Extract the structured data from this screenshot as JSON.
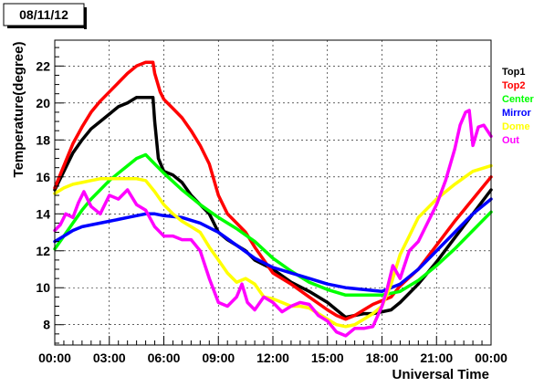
{
  "title_box": "08/11/12",
  "chart_data": {
    "type": "line",
    "title": "08/11/12",
    "xlabel": "Universal Time",
    "ylabel": "Temperature(degree)",
    "xlim": [
      0,
      24
    ],
    "ylim": [
      6.9,
      23.4
    ],
    "x_ticks": [
      {
        "v": 0,
        "label": "00:00"
      },
      {
        "v": 3,
        "label": "03:00"
      },
      {
        "v": 6,
        "label": "06:00"
      },
      {
        "v": 9,
        "label": "09:00"
      },
      {
        "v": 12,
        "label": "12:00"
      },
      {
        "v": 15,
        "label": "15:00"
      },
      {
        "v": 18,
        "label": "18:00"
      },
      {
        "v": 21,
        "label": "21:00"
      },
      {
        "v": 24,
        "label": "00:00"
      }
    ],
    "y_ticks": [
      {
        "v": 8,
        "label": "8"
      },
      {
        "v": 10,
        "label": "10"
      },
      {
        "v": 12,
        "label": "12"
      },
      {
        "v": 14,
        "label": "14"
      },
      {
        "v": 16,
        "label": "16"
      },
      {
        "v": 18,
        "label": "18"
      },
      {
        "v": 20,
        "label": "20"
      },
      {
        "v": 22,
        "label": "22"
      }
    ],
    "grid": true,
    "legend_position": "right",
    "series": [
      {
        "name": "Top1",
        "color": "#000000",
        "x": [
          0,
          0.5,
          1,
          1.5,
          2,
          2.5,
          3,
          3.5,
          4,
          4.5,
          5,
          5.4,
          5.5,
          5.7,
          6,
          6.5,
          7,
          7.5,
          8,
          8.5,
          9,
          9.5,
          10,
          10.5,
          11,
          12,
          13,
          14,
          15,
          15.5,
          16,
          16.5,
          17,
          17.5,
          18,
          18.5,
          19,
          20,
          21,
          22,
          23,
          24
        ],
        "y": [
          15.3,
          16.3,
          17.3,
          18.0,
          18.6,
          19.0,
          19.4,
          19.8,
          20.0,
          20.3,
          20.3,
          20.3,
          19.0,
          17.0,
          16.3,
          16.1,
          15.7,
          15.0,
          14.5,
          14.0,
          13.0,
          12.6,
          12.3,
          12.0,
          11.5,
          11.0,
          10.3,
          9.8,
          9.2,
          8.8,
          8.4,
          8.5,
          8.6,
          8.6,
          8.7,
          8.8,
          9.2,
          10.2,
          11.4,
          12.7,
          14.0,
          15.3
        ]
      },
      {
        "name": "Top2",
        "color": "#ff0000",
        "x": [
          0,
          0.5,
          1,
          1.5,
          2,
          2.5,
          3,
          3.5,
          4,
          4.5,
          5,
          5.4,
          5.5,
          5.8,
          6,
          6.5,
          7,
          7.5,
          8,
          8.5,
          9,
          9.5,
          10,
          10.5,
          11,
          12,
          13,
          14,
          15,
          15.5,
          16,
          16.5,
          17,
          17.5,
          18,
          18.5,
          19,
          20,
          21,
          22,
          23,
          24
        ],
        "y": [
          15.4,
          16.6,
          17.8,
          18.7,
          19.5,
          20.1,
          20.6,
          21.1,
          21.6,
          22.0,
          22.2,
          22.2,
          21.6,
          20.6,
          20.2,
          19.7,
          19.2,
          18.5,
          17.7,
          16.7,
          15.0,
          14.0,
          13.5,
          13.0,
          12.2,
          10.8,
          10.2,
          9.5,
          8.8,
          8.5,
          8.3,
          8.5,
          8.8,
          9.1,
          9.3,
          9.5,
          10.1,
          11.0,
          12.3,
          13.6,
          14.8,
          16.0
        ]
      },
      {
        "name": "Center",
        "color": "#00ff00",
        "x": [
          0,
          0.5,
          1,
          1.5,
          2,
          2.5,
          3,
          3.5,
          4,
          4.5,
          5,
          5.5,
          6,
          7,
          8,
          9,
          10,
          11,
          12,
          13,
          14,
          15,
          16,
          17,
          18,
          19,
          20,
          21,
          22,
          23,
          24
        ],
        "y": [
          12.1,
          12.8,
          13.5,
          14.2,
          14.8,
          15.3,
          15.8,
          16.2,
          16.6,
          17.0,
          17.2,
          16.7,
          16.2,
          15.3,
          14.5,
          13.8,
          13.2,
          12.5,
          11.6,
          10.9,
          10.3,
          9.9,
          9.6,
          9.6,
          9.6,
          9.8,
          10.4,
          11.2,
          12.1,
          13.1,
          14.1
        ]
      },
      {
        "name": "Mirror",
        "color": "#0000ff",
        "x": [
          0,
          0.5,
          1,
          1.5,
          2,
          2.5,
          3,
          3.5,
          4,
          4.5,
          5,
          5.5,
          6,
          7,
          8,
          9,
          10,
          11,
          12,
          13,
          14,
          15,
          16,
          17,
          18,
          19,
          20,
          21,
          22,
          23,
          24
        ],
        "y": [
          12.5,
          12.8,
          13.1,
          13.3,
          13.4,
          13.5,
          13.6,
          13.7,
          13.8,
          13.9,
          14.0,
          14.0,
          13.9,
          13.8,
          13.5,
          13.0,
          12.3,
          11.6,
          11.1,
          10.8,
          10.5,
          10.2,
          10.0,
          9.9,
          9.8,
          10.2,
          11.0,
          12.0,
          13.0,
          14.0,
          14.8
        ]
      },
      {
        "name": "Dome",
        "color": "#ffff00",
        "x": [
          0,
          0.5,
          1,
          1.5,
          2,
          2.5,
          3,
          3.5,
          4,
          4.5,
          5,
          5.5,
          6,
          6.5,
          7,
          7.5,
          8,
          8.5,
          9,
          9.5,
          10,
          10.5,
          11,
          11.5,
          12,
          12.5,
          13,
          13.5,
          14,
          14.5,
          15,
          15.5,
          16,
          16.5,
          17,
          17.5,
          18,
          18.5,
          19,
          19.5,
          20,
          21,
          22,
          23,
          24
        ],
        "y": [
          15.1,
          15.4,
          15.6,
          15.7,
          15.8,
          15.9,
          15.9,
          15.9,
          15.9,
          15.9,
          15.8,
          15.2,
          14.5,
          14.0,
          13.6,
          13.3,
          13.0,
          12.2,
          11.5,
          10.8,
          10.3,
          10.5,
          10.2,
          9.5,
          9.4,
          9.2,
          9.0,
          9.0,
          8.9,
          8.6,
          8.3,
          8.0,
          7.9,
          8.0,
          8.3,
          8.6,
          9.0,
          10.2,
          11.8,
          12.8,
          13.8,
          14.8,
          15.6,
          16.3,
          16.6
        ]
      },
      {
        "name": "Out",
        "color": "#ff00ff",
        "x": [
          0,
          0.3,
          0.6,
          1,
          1.3,
          1.6,
          2,
          2.5,
          3,
          3.5,
          4,
          4.5,
          5,
          5.5,
          6,
          6.5,
          7,
          7.5,
          8,
          8.5,
          9,
          9.5,
          10,
          10.3,
          10.6,
          11,
          11.5,
          12,
          12.5,
          13,
          13.5,
          14,
          14.5,
          15,
          15.5,
          16,
          16.5,
          17,
          17.5,
          18,
          18.3,
          18.6,
          19,
          19.5,
          20,
          20.5,
          21,
          21.5,
          22,
          22.3,
          22.6,
          22.8,
          23,
          23.3,
          23.6,
          24
        ],
        "y": [
          13.1,
          13.4,
          14.0,
          13.8,
          14.6,
          15.2,
          14.4,
          14.0,
          15.0,
          14.8,
          15.3,
          14.5,
          14.2,
          13.3,
          12.8,
          12.8,
          12.6,
          12.6,
          12.0,
          10.5,
          9.2,
          9.0,
          9.5,
          10.2,
          9.2,
          8.8,
          9.5,
          9.2,
          8.7,
          9.0,
          9.2,
          9.1,
          8.5,
          8.2,
          7.6,
          7.4,
          7.8,
          7.8,
          7.9,
          9.0,
          10.0,
          11.2,
          10.5,
          12.0,
          12.5,
          13.5,
          14.5,
          15.8,
          17.5,
          18.8,
          19.5,
          19.6,
          17.7,
          18.7,
          18.8,
          18.2
        ]
      }
    ]
  }
}
